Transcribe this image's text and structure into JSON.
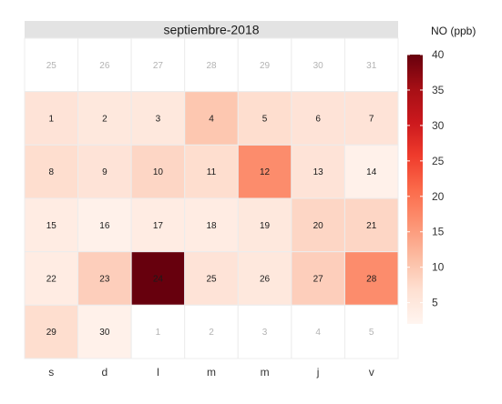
{
  "chart_data": {
    "type": "heatmap",
    "title": "septiembre-2018",
    "legend": {
      "title": "NO (ppb)",
      "position": "right",
      "range": [
        2,
        40
      ],
      "ticks": [
        5,
        10,
        15,
        20,
        25,
        30,
        35,
        40
      ],
      "colors": [
        "#fff5f0",
        "#fee0d2",
        "#fcbba1",
        "#fc9272",
        "#fb6a4a",
        "#ef3b2c",
        "#cb181d",
        "#a50f15",
        "#67000d"
      ]
    },
    "weekdays": [
      "s",
      "d",
      "l",
      "m",
      "m",
      "j",
      "v"
    ],
    "weeks": [
      [
        {
          "day": "25",
          "value": null,
          "in_month": false
        },
        {
          "day": "26",
          "value": null,
          "in_month": false
        },
        {
          "day": "27",
          "value": null,
          "in_month": false
        },
        {
          "day": "28",
          "value": null,
          "in_month": false
        },
        {
          "day": "29",
          "value": null,
          "in_month": false
        },
        {
          "day": "30",
          "value": null,
          "in_month": false
        },
        {
          "day": "31",
          "value": null,
          "in_month": false
        }
      ],
      [
        {
          "day": "1",
          "value": 6,
          "in_month": true
        },
        {
          "day": "2",
          "value": 5,
          "in_month": true
        },
        {
          "day": "3",
          "value": 5,
          "in_month": true
        },
        {
          "day": "4",
          "value": 10,
          "in_month": true
        },
        {
          "day": "5",
          "value": 7,
          "in_month": true
        },
        {
          "day": "6",
          "value": 6,
          "in_month": true
        },
        {
          "day": "7",
          "value": 6,
          "in_month": true
        }
      ],
      [
        {
          "day": "8",
          "value": 7,
          "in_month": true
        },
        {
          "day": "9",
          "value": 6,
          "in_month": true
        },
        {
          "day": "10",
          "value": 8,
          "in_month": true
        },
        {
          "day": "11",
          "value": 7,
          "in_month": true
        },
        {
          "day": "12",
          "value": 17,
          "in_month": true
        },
        {
          "day": "13",
          "value": 6,
          "in_month": true
        },
        {
          "day": "14",
          "value": 3,
          "in_month": true
        }
      ],
      [
        {
          "day": "15",
          "value": 4,
          "in_month": true
        },
        {
          "day": "16",
          "value": 3,
          "in_month": true
        },
        {
          "day": "17",
          "value": 4,
          "in_month": true
        },
        {
          "day": "18",
          "value": 4,
          "in_month": true
        },
        {
          "day": "19",
          "value": 5,
          "in_month": true
        },
        {
          "day": "20",
          "value": 8,
          "in_month": true
        },
        {
          "day": "21",
          "value": 8,
          "in_month": true
        }
      ],
      [
        {
          "day": "22",
          "value": 4,
          "in_month": true
        },
        {
          "day": "23",
          "value": 9,
          "in_month": true
        },
        {
          "day": "24",
          "value": 40,
          "in_month": true
        },
        {
          "day": "25",
          "value": 6,
          "in_month": true
        },
        {
          "day": "26",
          "value": 5,
          "in_month": true
        },
        {
          "day": "27",
          "value": 9,
          "in_month": true
        },
        {
          "day": "28",
          "value": 17,
          "in_month": true
        }
      ],
      [
        {
          "day": "29",
          "value": 7,
          "in_month": true
        },
        {
          "day": "30",
          "value": 3,
          "in_month": true
        },
        {
          "day": "1",
          "value": null,
          "in_month": false
        },
        {
          "day": "2",
          "value": null,
          "in_month": false
        },
        {
          "day": "3",
          "value": null,
          "in_month": false
        },
        {
          "day": "4",
          "value": null,
          "in_month": false
        },
        {
          "day": "5",
          "value": null,
          "in_month": false
        }
      ]
    ]
  }
}
